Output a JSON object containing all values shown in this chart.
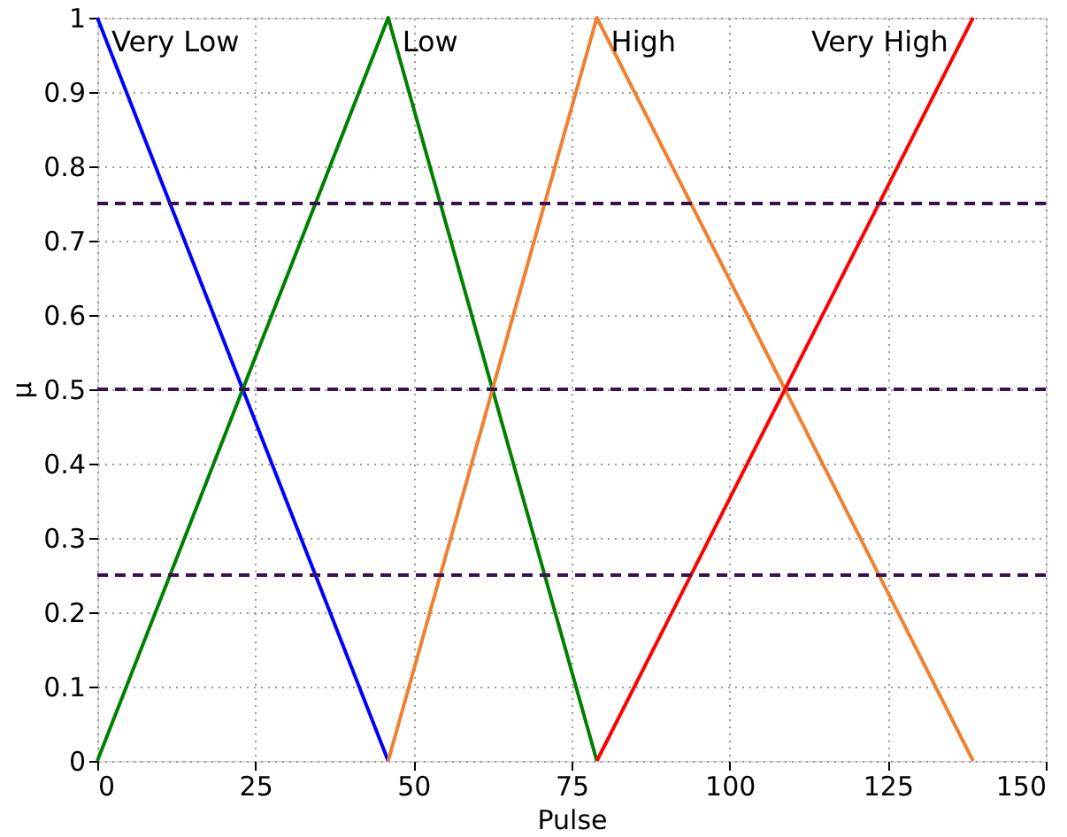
{
  "chart_data": {
    "type": "line",
    "xlabel": "Pulse",
    "ylabel": "μ",
    "series": [
      {
        "name": "Very Low",
        "color": "#0000ff",
        "x": [
          0,
          46
        ],
        "values": [
          1,
          0
        ]
      },
      {
        "name": "Low",
        "color": "#008000",
        "x": [
          0,
          46,
          79
        ],
        "values": [
          0,
          1,
          0
        ]
      },
      {
        "name": "High",
        "color": "#f08030",
        "x": [
          46,
          79,
          138.5
        ],
        "values": [
          0,
          1,
          0
        ]
      },
      {
        "name": "Very High",
        "color": "#ff0000",
        "x": [
          79,
          138.5
        ],
        "values": [
          0,
          1
        ]
      }
    ],
    "xlim": [
      0,
      150
    ],
    "xticks": [
      0,
      25,
      50,
      75,
      100,
      125,
      150
    ],
    "ylim": [
      0,
      1
    ],
    "yticks": [
      0,
      0.1,
      0.2,
      0.3,
      0.4,
      0.5,
      0.6,
      0.7,
      0.8,
      0.9,
      1
    ],
    "ref_lines": [
      {
        "axis": "y",
        "value": 0.25,
        "color": "#3c1050",
        "line_style": "dashed"
      },
      {
        "axis": "y",
        "value": 0.5,
        "color": "#3c1050",
        "line_style": "dashed"
      },
      {
        "axis": "y",
        "value": 0.75,
        "color": "#3c1050",
        "line_style": "dashed"
      }
    ],
    "grid": true,
    "marker": "none",
    "line_style": "solid"
  }
}
